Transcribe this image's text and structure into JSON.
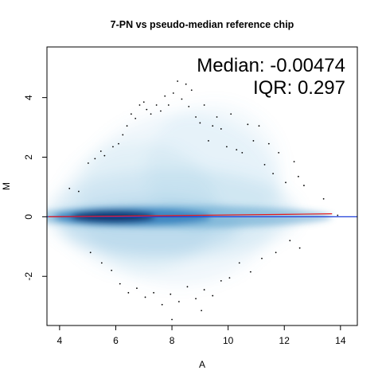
{
  "chart_data": {
    "type": "scatter",
    "title": "7-PN vs pseudo-median reference chip",
    "xlabel": "A",
    "ylabel": "M",
    "xlim": [
      3.55,
      14.6
    ],
    "ylim": [
      -3.65,
      5.7
    ],
    "x_ticks": [
      4,
      6,
      8,
      10,
      12,
      14
    ],
    "y_ticks": [
      -2,
      0,
      2,
      4
    ],
    "annotations": [
      "Median: -0.00474",
      "IQR: 0.297"
    ],
    "density_color": "#08306b",
    "loess_line": {
      "color": "#e41a1c",
      "x": [
        3.6,
        6,
        8,
        10,
        12,
        13.7
      ],
      "y": [
        0.0,
        0.02,
        0.04,
        0.06,
        0.08,
        0.1
      ]
    },
    "reference_line": {
      "color": "#1f3fd9",
      "y": 0
    },
    "outliers": {
      "x": [
        4.35,
        4.68,
        5.02,
        5.26,
        5.47,
        5.6,
        5.9,
        6.1,
        6.25,
        6.4,
        6.55,
        6.7,
        6.85,
        7.0,
        7.1,
        7.25,
        7.45,
        7.6,
        7.75,
        7.88,
        8.05,
        8.2,
        8.35,
        8.5,
        8.6,
        8.7,
        8.85,
        9.0,
        9.15,
        9.3,
        9.45,
        9.6,
        9.75,
        9.95,
        10.1,
        10.3,
        10.5,
        10.7,
        10.9,
        11.1,
        11.3,
        11.45,
        11.6,
        11.8,
        12.05,
        12.35,
        12.5,
        12.7,
        13.4,
        13.9,
        5.1,
        5.5,
        5.85,
        6.15,
        6.45,
        6.75,
        7.05,
        7.35,
        7.65,
        7.95,
        8.25,
        8.55,
        8.85,
        9.15,
        9.45,
        9.75,
        10.05,
        10.4,
        10.8,
        11.2,
        11.7,
        12.2,
        12.55,
        8.0,
        9.05
      ],
      "y": [
        0.95,
        0.85,
        1.8,
        1.95,
        2.2,
        2.05,
        2.35,
        2.45,
        2.75,
        3.05,
        3.45,
        3.3,
        3.75,
        3.85,
        3.6,
        3.45,
        3.75,
        3.55,
        4.05,
        3.75,
        4.15,
        4.55,
        3.95,
        4.45,
        3.7,
        4.25,
        3.35,
        3.15,
        3.75,
        2.55,
        3.05,
        3.35,
        2.95,
        2.35,
        3.45,
        2.25,
        2.15,
        3.1,
        2.55,
        3.05,
        1.75,
        2.45,
        1.45,
        2.15,
        1.15,
        1.85,
        1.35,
        1.05,
        0.6,
        0.05,
        -1.2,
        -1.55,
        -1.8,
        -2.25,
        -2.55,
        -2.4,
        -2.7,
        -2.55,
        -2.95,
        -2.6,
        -2.85,
        -2.35,
        -2.75,
        -2.45,
        -2.65,
        -2.15,
        -2.05,
        -1.55,
        -1.85,
        -1.4,
        -1.2,
        -0.8,
        -1.05,
        -3.45,
        -3.15
      ]
    }
  }
}
